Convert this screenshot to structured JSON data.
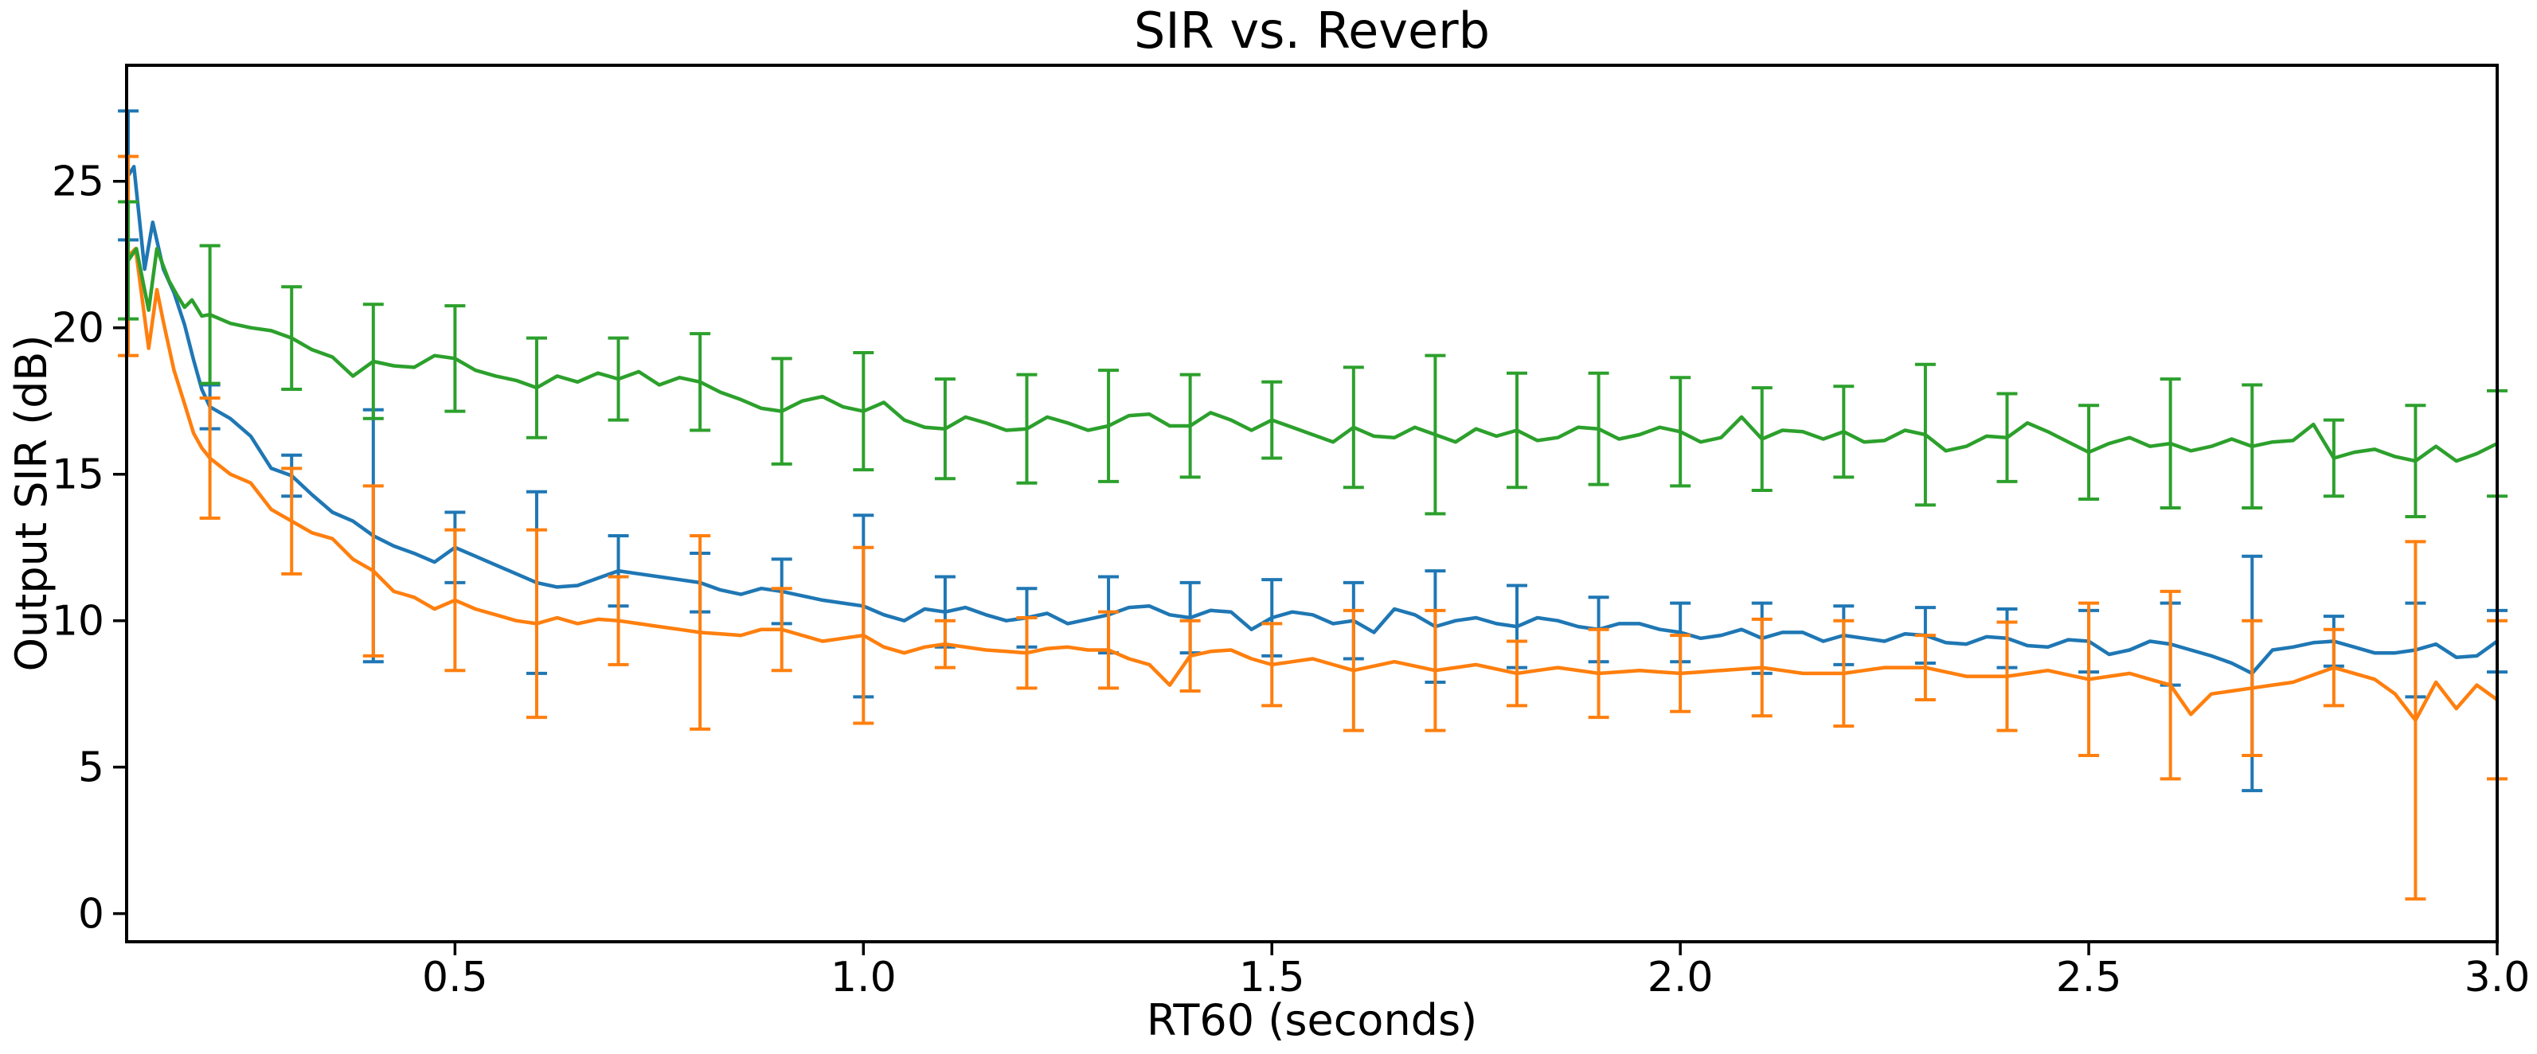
{
  "chart_data": {
    "type": "line",
    "title": "SIR vs. Reverb",
    "xlabel": "RT60 (seconds)",
    "ylabel": "Output SIR (dB)",
    "xlim": [
      0.098,
      3.0
    ],
    "ylim": [
      -0.96,
      28.96
    ],
    "xticks": [
      0.5,
      1.0,
      1.5,
      2.0,
      2.5,
      3.0
    ],
    "xtick_labels": [
      "0.5",
      "1.0",
      "1.5",
      "2.0",
      "2.5",
      "3.0"
    ],
    "yticks": [
      0,
      5,
      10,
      15,
      20,
      25
    ],
    "ytick_labels": [
      "0",
      "5",
      "10",
      "15",
      "20",
      "25"
    ],
    "grid": false,
    "legend": "none",
    "axis_color": "#000000",
    "background": "#ffffff",
    "line_width": 4.5,
    "errorbar_width": 4,
    "errorbar_cap_halfwidth": 13,
    "grid_x0": 0.2,
    "grid_dx": 0.025,
    "series": [
      {
        "name": "series-blue",
        "color": "#1f77b4",
        "head": [
          [
            0.1,
            25.2
          ],
          [
            0.107,
            25.5
          ],
          [
            0.12,
            22.0
          ],
          [
            0.13,
            23.6
          ],
          [
            0.143,
            22.0
          ],
          [
            0.156,
            21.2
          ],
          [
            0.169,
            20.1
          ],
          [
            0.18,
            18.9
          ],
          [
            0.19,
            17.9
          ]
        ],
        "y": [
          17.3,
          16.9,
          16.3,
          15.2,
          14.95,
          14.3,
          13.7,
          13.4,
          12.9,
          12.55,
          12.3,
          12.0,
          12.5,
          12.2,
          11.9,
          11.6,
          11.3,
          11.15,
          11.2,
          11.45,
          11.7,
          11.6,
          11.5,
          11.4,
          11.3,
          11.05,
          10.9,
          11.1,
          11.0,
          10.85,
          10.7,
          10.6,
          10.5,
          10.2,
          10.0,
          10.4,
          10.3,
          10.45,
          10.2,
          10.0,
          10.1,
          10.25,
          9.9,
          10.05,
          10.2,
          10.45,
          10.5,
          10.2,
          10.1,
          10.35,
          10.3,
          9.7,
          10.1,
          10.3,
          10.2,
          9.9,
          10.0,
          9.6,
          10.4,
          10.2,
          9.8,
          10.0,
          10.1,
          9.9,
          9.8,
          10.1,
          10.0,
          9.8,
          9.7,
          9.9,
          9.9,
          9.7,
          9.6,
          9.4,
          9.5,
          9.7,
          9.4,
          9.6,
          9.6,
          9.3,
          9.5,
          9.4,
          9.3,
          9.55,
          9.5,
          9.25,
          9.2,
          9.45,
          9.4,
          9.15,
          9.1,
          9.35,
          9.3,
          8.85,
          9.0,
          9.3,
          9.2,
          9.0,
          8.8,
          8.55,
          8.2,
          9.0,
          9.1,
          9.25,
          9.3,
          9.1,
          8.9,
          8.9,
          9.0,
          9.2,
          8.75,
          8.8,
          9.3
        ],
        "error_bars": [
          [
            0.1,
            25.2,
            2.2
          ],
          [
            0.2,
            17.3,
            0.75
          ],
          [
            0.3,
            14.95,
            0.7
          ],
          [
            0.4,
            12.9,
            4.3
          ],
          [
            0.5,
            12.5,
            1.2
          ],
          [
            0.6,
            11.3,
            3.1
          ],
          [
            0.7,
            11.7,
            1.2
          ],
          [
            0.8,
            11.3,
            1.0
          ],
          [
            0.9,
            11.0,
            1.1
          ],
          [
            1.0,
            10.5,
            3.1
          ],
          [
            1.1,
            10.3,
            1.2
          ],
          [
            1.2,
            10.1,
            1.0
          ],
          [
            1.3,
            10.2,
            1.3
          ],
          [
            1.4,
            10.1,
            1.2
          ],
          [
            1.5,
            10.1,
            1.3
          ],
          [
            1.6,
            10.0,
            1.3
          ],
          [
            1.7,
            9.8,
            1.9
          ],
          [
            1.8,
            9.8,
            1.4
          ],
          [
            1.9,
            9.7,
            1.1
          ],
          [
            2.0,
            9.6,
            1.0
          ],
          [
            2.1,
            9.4,
            1.2
          ],
          [
            2.2,
            9.5,
            1.0
          ],
          [
            2.3,
            9.5,
            0.95
          ],
          [
            2.4,
            9.4,
            1.0
          ],
          [
            2.5,
            9.3,
            1.05
          ],
          [
            2.6,
            9.2,
            1.4
          ],
          [
            2.7,
            8.2,
            4.0
          ],
          [
            2.8,
            9.3,
            0.85
          ],
          [
            2.9,
            9.0,
            1.6
          ],
          [
            3.0,
            9.3,
            1.05
          ]
        ]
      },
      {
        "name": "series-orange",
        "color": "#ff7f0e",
        "head": [
          [
            0.1,
            22.45
          ],
          [
            0.109,
            22.7
          ],
          [
            0.125,
            19.3
          ],
          [
            0.135,
            21.3
          ],
          [
            0.143,
            20.2
          ],
          [
            0.156,
            18.55
          ],
          [
            0.169,
            17.4
          ],
          [
            0.18,
            16.4
          ],
          [
            0.19,
            15.9
          ]
        ],
        "y": [
          15.55,
          15.0,
          14.7,
          13.8,
          13.4,
          13.0,
          12.8,
          12.1,
          11.7,
          11.0,
          10.8,
          10.4,
          10.7,
          10.4,
          10.2,
          10.0,
          9.9,
          10.1,
          9.9,
          10.05,
          10.0,
          9.9,
          9.8,
          9.7,
          9.6,
          9.55,
          9.5,
          9.7,
          9.7,
          9.5,
          9.3,
          9.4,
          9.5,
          9.1,
          8.9,
          9.1,
          9.2,
          9.1,
          9.0,
          8.95,
          8.9,
          9.05,
          9.1,
          9.0,
          9.0,
          8.7,
          8.5,
          7.8,
          8.8,
          8.95,
          9.0,
          8.7,
          8.5,
          8.6,
          8.7,
          8.5,
          8.3,
          8.45,
          8.6,
          8.45,
          8.3,
          8.4,
          8.5,
          8.35,
          8.2,
          8.3,
          8.4,
          8.3,
          8.2,
          8.25,
          8.3,
          8.25,
          8.2,
          8.25,
          8.3,
          8.35,
          8.4,
          8.3,
          8.2,
          8.2,
          8.2,
          8.3,
          8.4,
          8.4,
          8.4,
          8.25,
          8.1,
          8.1,
          8.1,
          8.2,
          8.3,
          8.15,
          8.0,
          8.1,
          8.2,
          8.0,
          7.8,
          6.8,
          7.5,
          7.6,
          7.7,
          7.8,
          7.9,
          8.15,
          8.4,
          8.2,
          8.0,
          7.5,
          6.6,
          7.9,
          7.0,
          7.8,
          7.3
        ],
        "error_bars": [
          [
            0.1,
            22.45,
            3.4
          ],
          [
            0.2,
            15.55,
            2.05
          ],
          [
            0.3,
            13.4,
            1.8
          ],
          [
            0.4,
            11.7,
            2.9
          ],
          [
            0.5,
            10.7,
            2.4
          ],
          [
            0.6,
            9.9,
            3.2
          ],
          [
            0.7,
            10.0,
            1.5
          ],
          [
            0.8,
            9.6,
            3.3
          ],
          [
            0.9,
            9.7,
            1.4
          ],
          [
            1.0,
            9.5,
            3.0
          ],
          [
            1.1,
            9.2,
            0.8
          ],
          [
            1.2,
            8.9,
            1.2
          ],
          [
            1.3,
            9.0,
            1.3
          ],
          [
            1.4,
            8.8,
            1.2
          ],
          [
            1.5,
            8.5,
            1.4
          ],
          [
            1.6,
            8.3,
            2.05
          ],
          [
            1.7,
            8.3,
            2.05
          ],
          [
            1.8,
            8.2,
            1.1
          ],
          [
            1.9,
            8.2,
            1.5
          ],
          [
            2.0,
            8.2,
            1.3
          ],
          [
            2.1,
            8.4,
            1.65
          ],
          [
            2.2,
            8.2,
            1.8
          ],
          [
            2.3,
            8.4,
            1.1
          ],
          [
            2.4,
            8.1,
            1.85
          ],
          [
            2.5,
            8.0,
            2.6
          ],
          [
            2.6,
            7.8,
            3.2
          ],
          [
            2.7,
            7.7,
            2.3
          ],
          [
            2.8,
            8.4,
            1.3
          ],
          [
            2.9,
            6.6,
            6.1
          ],
          [
            3.0,
            7.3,
            2.7
          ]
        ]
      },
      {
        "name": "series-green",
        "color": "#2ca02c",
        "head": [
          [
            0.1,
            22.3
          ],
          [
            0.11,
            22.7
          ],
          [
            0.125,
            20.6
          ],
          [
            0.135,
            22.7
          ],
          [
            0.143,
            22.1
          ],
          [
            0.15,
            21.6
          ],
          [
            0.16,
            21.1
          ],
          [
            0.169,
            20.7
          ],
          [
            0.178,
            20.95
          ],
          [
            0.19,
            20.4
          ]
        ],
        "y": [
          20.45,
          20.15,
          20.0,
          19.9,
          19.65,
          19.25,
          19.0,
          18.35,
          18.85,
          18.7,
          18.65,
          19.05,
          18.95,
          18.55,
          18.35,
          18.2,
          17.95,
          18.35,
          18.15,
          18.45,
          18.25,
          18.5,
          18.05,
          18.3,
          18.15,
          17.8,
          17.55,
          17.25,
          17.15,
          17.5,
          17.65,
          17.3,
          17.15,
          17.45,
          16.85,
          16.6,
          16.55,
          16.95,
          16.75,
          16.5,
          16.55,
          16.95,
          16.75,
          16.5,
          16.65,
          17.0,
          17.05,
          16.65,
          16.65,
          17.1,
          16.85,
          16.5,
          16.85,
          16.6,
          16.35,
          16.1,
          16.6,
          16.3,
          16.25,
          16.6,
          16.35,
          16.1,
          16.55,
          16.3,
          16.5,
          16.15,
          16.25,
          16.6,
          16.55,
          16.2,
          16.35,
          16.6,
          16.45,
          16.1,
          16.25,
          16.95,
          16.2,
          16.5,
          16.45,
          16.2,
          16.45,
          16.1,
          16.15,
          16.5,
          16.35,
          15.8,
          15.95,
          16.3,
          16.25,
          16.75,
          16.45,
          16.1,
          15.75,
          16.05,
          16.25,
          15.95,
          16.05,
          15.8,
          15.95,
          16.2,
          15.95,
          16.1,
          16.15,
          16.7,
          15.55,
          15.75,
          15.85,
          15.6,
          15.45,
          15.95,
          15.45,
          15.7,
          16.05
        ],
        "error_bars": [
          [
            0.1,
            22.3,
            2.0
          ],
          [
            0.2,
            20.45,
            2.35
          ],
          [
            0.3,
            19.65,
            1.75
          ],
          [
            0.4,
            18.85,
            1.95
          ],
          [
            0.5,
            18.95,
            1.8
          ],
          [
            0.6,
            17.95,
            1.7
          ],
          [
            0.7,
            18.25,
            1.4
          ],
          [
            0.8,
            18.15,
            1.65
          ],
          [
            0.9,
            17.15,
            1.8
          ],
          [
            1.0,
            17.15,
            2.0
          ],
          [
            1.1,
            16.55,
            1.7
          ],
          [
            1.2,
            16.55,
            1.85
          ],
          [
            1.3,
            16.65,
            1.9
          ],
          [
            1.4,
            16.65,
            1.75
          ],
          [
            1.5,
            16.85,
            1.3
          ],
          [
            1.6,
            16.6,
            2.05
          ],
          [
            1.7,
            16.35,
            2.7
          ],
          [
            1.8,
            16.5,
            1.95
          ],
          [
            1.9,
            16.55,
            1.9
          ],
          [
            2.0,
            16.45,
            1.85
          ],
          [
            2.1,
            16.2,
            1.75
          ],
          [
            2.2,
            16.45,
            1.55
          ],
          [
            2.3,
            16.35,
            2.4
          ],
          [
            2.4,
            16.25,
            1.5
          ],
          [
            2.5,
            15.75,
            1.6
          ],
          [
            2.6,
            16.05,
            2.2
          ],
          [
            2.7,
            15.95,
            2.1
          ],
          [
            2.8,
            15.55,
            1.3
          ],
          [
            2.9,
            15.45,
            1.9
          ],
          [
            3.0,
            16.05,
            1.8
          ]
        ]
      }
    ]
  }
}
